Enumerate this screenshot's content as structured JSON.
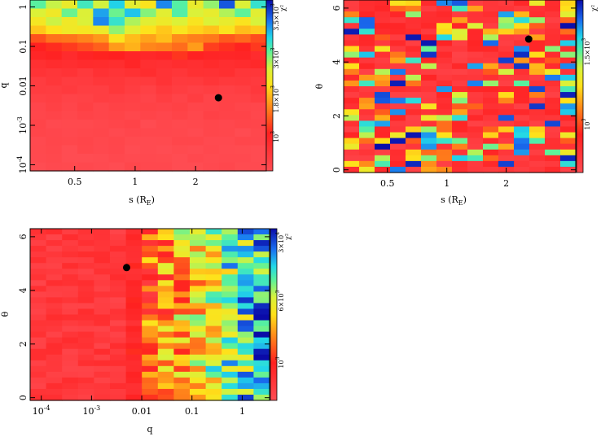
{
  "chart_data": [
    {
      "id": "panel-s-q",
      "type": "heatmap",
      "title": "",
      "xlabel": "s (R_E)",
      "ylabel": "q",
      "x_scale": "log",
      "y_scale": "log",
      "xlim": [
        0.3,
        4.5
      ],
      "ylim": [
        7e-05,
        1.5
      ],
      "x_ticks": [
        {
          "value": 0.5,
          "label": "0.5"
        },
        {
          "value": 1,
          "label": "1"
        },
        {
          "value": 2,
          "label": "2"
        }
      ],
      "y_ticks": [
        {
          "value": 0.0001,
          "label": "10^-4"
        },
        {
          "value": 0.001,
          "label": "10^-3"
        },
        {
          "value": 0.01,
          "label": "0.01"
        },
        {
          "value": 0.1,
          "label": "0.1"
        },
        {
          "value": 1,
          "label": "1"
        }
      ],
      "colorbar": {
        "label": "χ²",
        "ticks": [
          {
            "value": "10^3",
            "label": "10^3"
          },
          {
            "value": "1.8x10^3",
            "label": "1.8×10^3"
          },
          {
            "value": "3x10^3",
            "label": "3×10^3"
          },
          {
            "value": "3.5x10^3",
            "label": "3.5×10^3"
          }
        ]
      },
      "best_fit": {
        "s": 2.6,
        "q": 0.005
      },
      "grid_cols": 15,
      "grid_rows": 20,
      "z_rows_top_to_bottom": [
        [
          0.7,
          0.62,
          0.55,
          0.72,
          0.6,
          0.78,
          0.58,
          0.5,
          0.85,
          0.7,
          0.55,
          0.66,
          0.9,
          0.6,
          0.75
        ],
        [
          0.6,
          0.55,
          0.68,
          0.58,
          0.82,
          0.7,
          0.8,
          0.66,
          0.58,
          0.72,
          0.6,
          0.55,
          0.62,
          0.7,
          0.58
        ],
        [
          0.52,
          0.62,
          0.55,
          0.6,
          0.86,
          0.75,
          0.62,
          0.58,
          0.54,
          0.6,
          0.52,
          0.58,
          0.55,
          0.52,
          0.6
        ],
        [
          0.45,
          0.5,
          0.55,
          0.52,
          0.56,
          0.65,
          0.58,
          0.5,
          0.47,
          0.52,
          0.48,
          0.46,
          0.5,
          0.45,
          0.48
        ],
        [
          0.3,
          0.35,
          0.34,
          0.38,
          0.4,
          0.52,
          0.45,
          0.42,
          0.44,
          0.38,
          0.36,
          0.34,
          0.3,
          0.32,
          0.3
        ],
        [
          0.22,
          0.24,
          0.26,
          0.28,
          0.32,
          0.4,
          0.42,
          0.38,
          0.36,
          0.32,
          0.4,
          0.28,
          0.24,
          0.22,
          0.26
        ],
        [
          0.18,
          0.2,
          0.17,
          0.19,
          0.21,
          0.22,
          0.2,
          0.18,
          0.19,
          0.24,
          0.21,
          0.19,
          0.2,
          0.18,
          0.17
        ],
        [
          0.15,
          0.16,
          0.14,
          0.17,
          0.15,
          0.16,
          0.18,
          0.15,
          0.14,
          0.17,
          0.15,
          0.16,
          0.14,
          0.15,
          0.16
        ],
        [
          0.12,
          0.1,
          0.13,
          0.11,
          0.14,
          0.12,
          0.13,
          0.15,
          0.12,
          0.11,
          0.13,
          0.12,
          0.14,
          0.12,
          0.11
        ],
        [
          0.09,
          0.1,
          0.08,
          0.09,
          0.1,
          0.11,
          0.09,
          0.1,
          0.13,
          0.1,
          0.09,
          0.1,
          0.09,
          0.1,
          0.08
        ],
        [
          0.07,
          0.08,
          0.09,
          0.07,
          0.08,
          0.09,
          0.08,
          0.07,
          0.09,
          0.08,
          0.07,
          0.08,
          0.07,
          0.08,
          0.09
        ],
        [
          0.05,
          0.06,
          0.05,
          0.06,
          0.07,
          0.05,
          0.06,
          0.05,
          0.06,
          0.05,
          0.06,
          0.05,
          0.06,
          0.05,
          0.06
        ],
        [
          0.04,
          0.05,
          0.04,
          0.05,
          0.04,
          0.05,
          0.04,
          0.05,
          0.04,
          0.05,
          0.04,
          0.05,
          0.04,
          0.05,
          0.04
        ],
        [
          0.03,
          0.04,
          0.03,
          0.04,
          0.03,
          0.04,
          0.03,
          0.04,
          0.03,
          0.04,
          0.03,
          0.04,
          0.03,
          0.04,
          0.03
        ],
        [
          0.03,
          0.02,
          0.03,
          0.02,
          0.03,
          0.02,
          0.03,
          0.02,
          0.03,
          0.02,
          0.03,
          0.02,
          0.03,
          0.02,
          0.03
        ],
        [
          0.02,
          0.02,
          0.02,
          0.02,
          0.02,
          0.02,
          0.02,
          0.02,
          0.02,
          0.02,
          0.02,
          0.02,
          0.02,
          0.02,
          0.02
        ],
        [
          0.02,
          0.02,
          0.02,
          0.02,
          0.02,
          0.02,
          0.02,
          0.02,
          0.02,
          0.02,
          0.02,
          0.02,
          0.02,
          0.02,
          0.02
        ],
        [
          0.01,
          0.02,
          0.01,
          0.02,
          0.01,
          0.02,
          0.01,
          0.02,
          0.01,
          0.02,
          0.01,
          0.02,
          0.01,
          0.02,
          0.01
        ],
        [
          0.01,
          0.01,
          0.01,
          0.01,
          0.01,
          0.01,
          0.01,
          0.01,
          0.01,
          0.01,
          0.01,
          0.01,
          0.01,
          0.01,
          0.01
        ],
        [
          0.01,
          0.01,
          0.01,
          0.01,
          0.01,
          0.01,
          0.01,
          0.01,
          0.01,
          0.01,
          0.01,
          0.01,
          0.01,
          0.01,
          0.01
        ]
      ]
    },
    {
      "id": "panel-s-theta",
      "type": "heatmap",
      "title": "",
      "xlabel": "s (R_E)",
      "ylabel": "θ",
      "x_scale": "log",
      "y_scale": "linear",
      "xlim": [
        0.3,
        4.5
      ],
      "ylim": [
        -0.1,
        6.3
      ],
      "x_ticks": [
        {
          "value": 0.5,
          "label": "0.5"
        },
        {
          "value": 1,
          "label": "1"
        },
        {
          "value": 2,
          "label": "2"
        }
      ],
      "y_ticks": [
        {
          "value": 0,
          "label": "0"
        },
        {
          "value": 2,
          "label": "2"
        },
        {
          "value": 4,
          "label": "4"
        },
        {
          "value": 6,
          "label": "6"
        }
      ],
      "colorbar": {
        "label": "χ²",
        "ticks": [
          {
            "value": "10^3",
            "label": "10^3"
          },
          {
            "value": "1.5x10^3",
            "label": "1.5×10^3"
          }
        ]
      },
      "best_fit": {
        "s": 2.6,
        "theta": 4.85
      },
      "grid_cols": 15,
      "grid_rows": 30,
      "pattern": "noisy-uniform"
    },
    {
      "id": "panel-q-theta",
      "type": "heatmap",
      "title": "",
      "xlabel": "q",
      "ylabel": "θ",
      "x_scale": "log",
      "y_scale": "linear",
      "xlim": [
        6e-05,
        3.5
      ],
      "ylim": [
        -0.1,
        6.3
      ],
      "x_ticks": [
        {
          "value": 0.0001,
          "label": "10^-4"
        },
        {
          "value": 0.001,
          "label": "10^-3"
        },
        {
          "value": 0.01,
          "label": "0.01"
        },
        {
          "value": 0.1,
          "label": "0.1"
        },
        {
          "value": 1,
          "label": "1"
        }
      ],
      "y_ticks": [
        {
          "value": 0,
          "label": "0"
        },
        {
          "value": 2,
          "label": "2"
        },
        {
          "value": 4,
          "label": "4"
        },
        {
          "value": 6,
          "label": "6"
        }
      ],
      "colorbar": {
        "label": "χ²",
        "ticks": [
          {
            "value": "10^3",
            "label": "10^3"
          },
          {
            "value": "6x10^3",
            "label": "6×10^3"
          },
          {
            "value": "3x10^4",
            "label": "3×10^4"
          }
        ]
      },
      "best_fit": {
        "q": 0.005,
        "theta": 4.85
      },
      "grid_cols": 15,
      "grid_rows": 30,
      "pattern": "increasing-with-q"
    }
  ]
}
